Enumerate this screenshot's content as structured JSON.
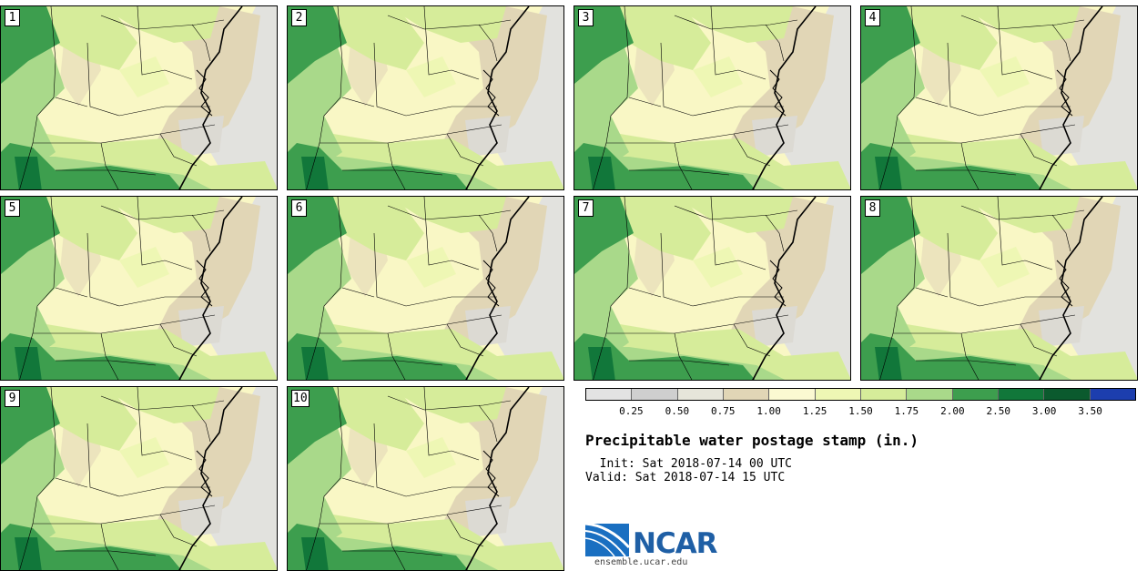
{
  "title": "Precipitable water postage stamp (in.)",
  "init_text": "  Init: Sat 2018-07-14 00 UTC",
  "valid_text": "Valid: Sat 2018-07-14 15 UTC",
  "panels": [
    "1",
    "2",
    "3",
    "4",
    "5",
    "6",
    "7",
    "8",
    "9",
    "10"
  ],
  "legend": {
    "ticks": [
      "0.25",
      "0.50",
      "0.75",
      "1.00",
      "1.25",
      "1.50",
      "1.75",
      "2.00",
      "2.50",
      "3.00",
      "3.50"
    ],
    "colors": [
      "#e3e3e3",
      "#cfcfcf",
      "#e6e5da",
      "#e1d6b6",
      "#fbf9d2",
      "#eef7b4",
      "#d6ec9a",
      "#a9d98a",
      "#3d9e4e",
      "#11773a",
      "#0b5a2e",
      "#1c3eae"
    ]
  },
  "logo": {
    "text": "NCAR",
    "url": "ensemble.ucar.edu"
  }
}
